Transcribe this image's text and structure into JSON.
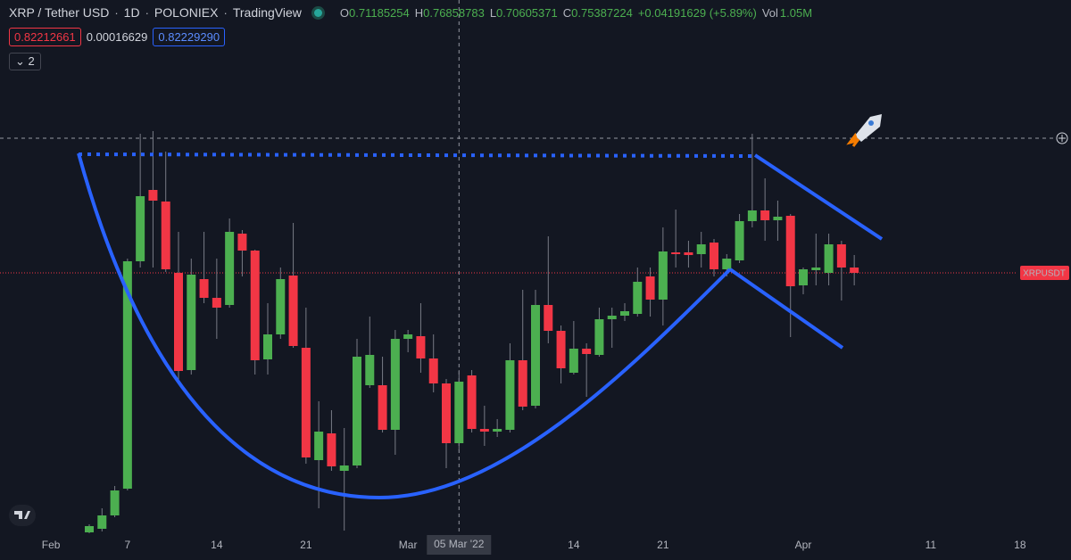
{
  "header": {
    "symbol": "XRP / Tether USD",
    "interval": "1D",
    "exchange": "POLONIEX",
    "source": "TradingView",
    "ohlc": [
      {
        "label": "O",
        "value": "0.71185254"
      },
      {
        "label": "H",
        "value": "0.76858783"
      },
      {
        "label": "L",
        "value": "0.70605371"
      },
      {
        "label": "C",
        "value": "0.75387224"
      }
    ],
    "change": "+0.04191629 (+5.89%)",
    "vol_label": "Vol",
    "vol": "1.05M"
  },
  "measure": [
    "0.82212661",
    "0.00016629",
    "0.82229290"
  ],
  "indicators_count": "2",
  "chart_data": {
    "type": "candlestick",
    "price_label": "XRPUSDT",
    "crosshair_date": "2022-03-05",
    "crosshair_label": "05 Mar '22",
    "up_color": "#4caf50",
    "down_color": "#f23645",
    "xlim": [
      "2022-01-28",
      "2022-04-22"
    ],
    "ylim": [
      0.6,
      0.9
    ],
    "xticks": [
      {
        "value": "2022-02-01",
        "label": "Feb"
      },
      {
        "value": "2022-02-07",
        "label": "7"
      },
      {
        "value": "2022-02-14",
        "label": "14"
      },
      {
        "value": "2022-02-21",
        "label": "21"
      },
      {
        "value": "2022-03-01",
        "label": "Mar"
      },
      {
        "value": "2022-03-14",
        "label": "14"
      },
      {
        "value": "2022-03-21",
        "label": "21"
      },
      {
        "value": "2022-04-01",
        "label": "Apr"
      },
      {
        "value": "2022-04-11",
        "label": "11"
      },
      {
        "value": "2022-04-18",
        "label": "18"
      }
    ],
    "x": [
      "2022-02-04",
      "2022-02-05",
      "2022-02-06",
      "2022-02-07",
      "2022-02-08",
      "2022-02-09",
      "2022-02-10",
      "2022-02-11",
      "2022-02-12",
      "2022-02-13",
      "2022-02-14",
      "2022-02-15",
      "2022-02-16",
      "2022-02-17",
      "2022-02-18",
      "2022-02-19",
      "2022-02-20",
      "2022-02-21",
      "2022-02-22",
      "2022-02-23",
      "2022-02-24",
      "2022-02-25",
      "2022-02-26",
      "2022-02-27",
      "2022-02-28",
      "2022-03-01",
      "2022-03-02",
      "2022-03-03",
      "2022-03-04",
      "2022-03-05",
      "2022-03-06",
      "2022-03-07",
      "2022-03-08",
      "2022-03-09",
      "2022-03-10",
      "2022-03-11",
      "2022-03-12",
      "2022-03-13",
      "2022-03-14",
      "2022-03-15",
      "2022-03-16",
      "2022-03-17",
      "2022-03-18",
      "2022-03-19",
      "2022-03-20",
      "2022-03-21",
      "2022-03-22",
      "2022-03-23",
      "2022-03-24",
      "2022-03-25",
      "2022-03-26",
      "2022-03-27",
      "2022-03-28",
      "2022-03-29",
      "2022-03-30",
      "2022-03-31",
      "2022-04-01",
      "2022-04-02",
      "2022-04-03",
      "2022-04-04",
      "2022-04-05"
    ],
    "open": [
      0.6015,
      0.6035,
      0.611,
      0.626,
      0.7535,
      0.7935,
      0.787,
      0.747,
      0.6925,
      0.7435,
      0.733,
      0.729,
      0.769,
      0.7595,
      0.6985,
      0.7125,
      0.7455,
      0.705,
      0.642,
      0.657,
      0.636,
      0.639,
      0.684,
      0.684,
      0.659,
      0.71,
      0.7115,
      0.699,
      0.685,
      0.6515,
      0.6895,
      0.6595,
      0.658,
      0.659,
      0.698,
      0.6725,
      0.729,
      0.7145,
      0.691,
      0.7045,
      0.701,
      0.721,
      0.723,
      0.724,
      0.745,
      0.732,
      0.7585,
      0.7585,
      0.7575,
      0.764,
      0.749,
      0.754,
      0.776,
      0.782,
      0.7765,
      0.779,
      0.74,
      0.7485,
      0.747,
      0.763,
      0.75
    ],
    "high": [
      0.606,
      0.615,
      0.6275,
      0.755,
      0.825,
      0.8265,
      0.815,
      0.77,
      0.755,
      0.77,
      0.755,
      0.7775,
      0.771,
      0.76,
      0.73,
      0.75,
      0.775,
      0.7275,
      0.675,
      0.67,
      0.66,
      0.71,
      0.7225,
      0.7,
      0.715,
      0.715,
      0.73,
      0.7125,
      0.6875,
      0.6925,
      0.6925,
      0.6725,
      0.665,
      0.7075,
      0.7375,
      0.7375,
      0.7675,
      0.7175,
      0.72,
      0.7075,
      0.7275,
      0.7275,
      0.73,
      0.75,
      0.75,
      0.7725,
      0.7825,
      0.765,
      0.77,
      0.766,
      0.7575,
      0.78,
      0.825,
      0.8,
      0.7875,
      0.78,
      0.75,
      0.769,
      0.769,
      0.765,
      0.757
    ],
    "low": [
      0.601,
      0.602,
      0.61,
      0.625,
      0.75,
      0.75,
      0.7475,
      0.685,
      0.69,
      0.73,
      0.71,
      0.7275,
      0.745,
      0.69,
      0.69,
      0.71,
      0.705,
      0.64,
      0.615,
      0.636,
      0.6025,
      0.6375,
      0.6825,
      0.6575,
      0.645,
      0.7025,
      0.691,
      0.68,
      0.6375,
      0.6475,
      0.6575,
      0.65,
      0.655,
      0.6575,
      0.67,
      0.671,
      0.7075,
      0.685,
      0.69,
      0.6775,
      0.7,
      0.705,
      0.72,
      0.7225,
      0.7225,
      0.7175,
      0.75,
      0.75,
      0.75,
      0.745,
      0.745,
      0.7525,
      0.7725,
      0.765,
      0.765,
      0.711,
      0.735,
      0.74,
      0.74,
      0.7315,
      0.74
    ],
    "close": [
      0.605,
      0.611,
      0.625,
      0.7535,
      0.79,
      0.7875,
      0.749,
      0.692,
      0.746,
      0.733,
      0.7275,
      0.77,
      0.7595,
      0.698,
      0.7125,
      0.7435,
      0.706,
      0.6435,
      0.658,
      0.6385,
      0.639,
      0.7,
      0.701,
      0.659,
      0.71,
      0.7125,
      0.699,
      0.685,
      0.6515,
      0.686,
      0.6595,
      0.658,
      0.6595,
      0.698,
      0.672,
      0.729,
      0.7145,
      0.6935,
      0.7045,
      0.7015,
      0.721,
      0.723,
      0.7255,
      0.742,
      0.732,
      0.759,
      0.7575,
      0.757,
      0.763,
      0.749,
      0.755,
      0.776,
      0.782,
      0.7765,
      0.7785,
      0.7395,
      0.749,
      0.75,
      0.763,
      0.75,
      0.747
    ]
  }
}
